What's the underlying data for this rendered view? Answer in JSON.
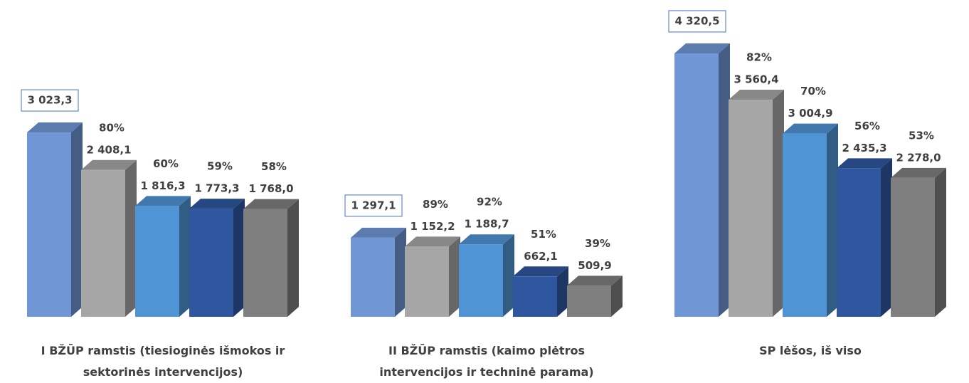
{
  "chart_data": {
    "type": "bar3d",
    "categories": [
      "I BŽŪP ramstis (tiesioginės išmokos ir sektorinės intervencijos)",
      "II BŽŪP ramstis (kaimo plėtros intervencijos ir techninė parama)",
      "SP lėšos, iš viso"
    ],
    "series": [
      {
        "color": "#7096d6",
        "values": [
          3023.3,
          1297.1,
          4320.5
        ],
        "value_labels": [
          "3 023,3",
          "1 297,1",
          "4 320,5"
        ],
        "boxed": true
      },
      {
        "color": "#a6a6a6",
        "values": [
          2408.1,
          1152.2,
          3560.4
        ],
        "value_labels": [
          "2 408,1",
          "1 152,2",
          "3 560,4"
        ],
        "shares": [
          80,
          89,
          82
        ],
        "share_labels": [
          "80%",
          "89%",
          "82%"
        ]
      },
      {
        "color": "#4f94d4",
        "values": [
          1816.3,
          1188.7,
          3004.9
        ],
        "value_labels": [
          "1 816,3",
          "1 188,7",
          "3 004,9"
        ],
        "shares": [
          60,
          92,
          70
        ],
        "share_labels": [
          "60%",
          "92%",
          "70%"
        ]
      },
      {
        "color": "#2f57a0",
        "values": [
          1773.3,
          662.1,
          2435.3
        ],
        "value_labels": [
          "1 773,3",
          "662,1",
          "2 435,3"
        ],
        "shares": [
          59,
          51,
          56
        ],
        "share_labels": [
          "59%",
          "51%",
          "56%"
        ]
      },
      {
        "color": "#7f7f7f",
        "values": [
          1768.0,
          509.9,
          2278.0
        ],
        "value_labels": [
          "1 768,0",
          "509,9",
          "2 278,0"
        ],
        "shares": [
          58,
          39,
          53
        ],
        "share_labels": [
          "58%",
          "39%",
          "53%"
        ]
      }
    ]
  }
}
